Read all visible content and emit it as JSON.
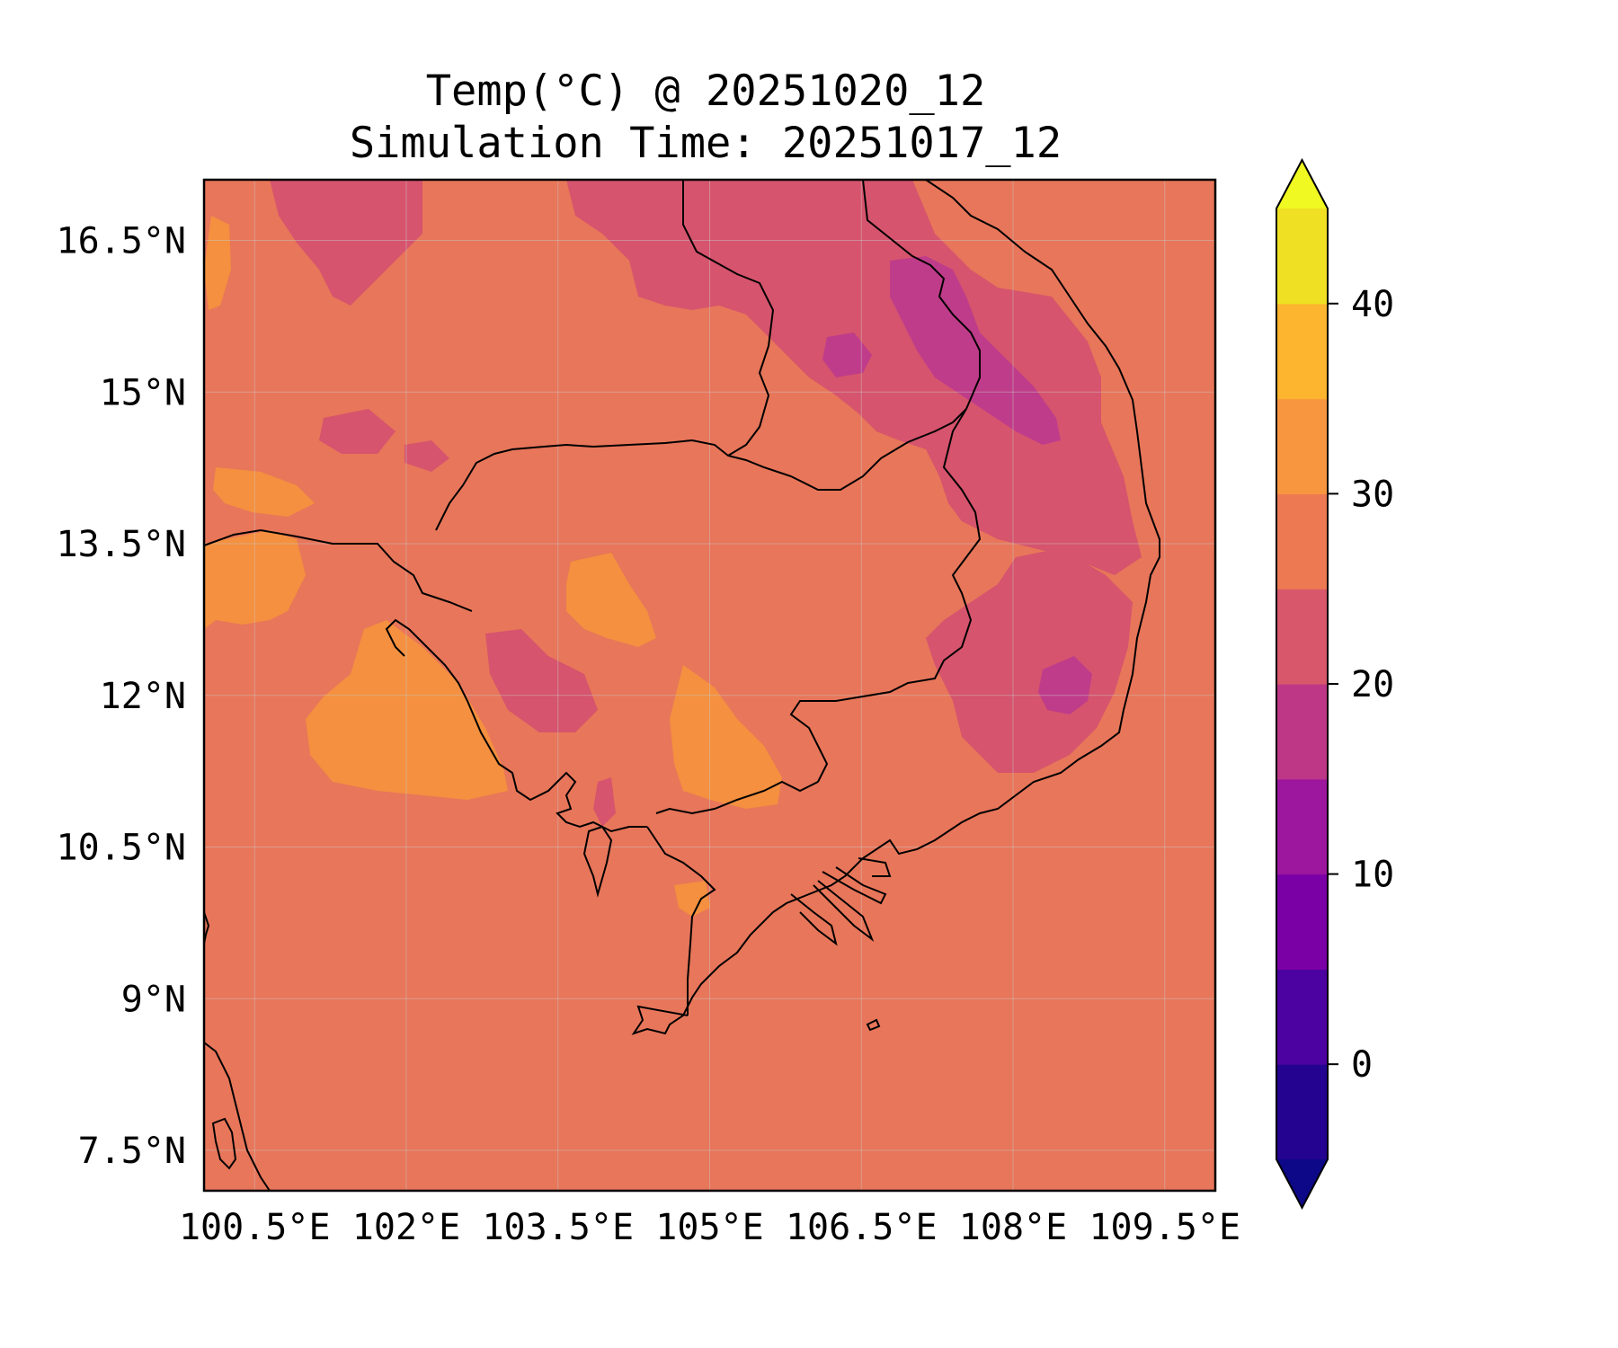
{
  "title": "Temp(°C) @ 20251020_12",
  "subtitle": "Simulation Time: 20251017_12",
  "colors": {
    "base_field": "#e8765a",
    "warm_field": "#f4903f",
    "cool_field": "#d6546d",
    "cold_field": "#bf3c8a",
    "coastline": "#000000",
    "gridline": "#c9c9c9"
  },
  "map": {
    "lon_range": [
      100.0,
      110.0
    ],
    "lat_range": [
      7.1,
      17.1
    ],
    "lon_ticks": [
      "100.5°E",
      "102°E",
      "103.5°E",
      "105°E",
      "106.5°E",
      "108°E",
      "109.5°E"
    ],
    "lon_tick_values": [
      100.5,
      102,
      103.5,
      105,
      106.5,
      108,
      109.5
    ],
    "lat_ticks": [
      "16.5°N",
      "15°N",
      "13.5°N",
      "12°N",
      "10.5°N",
      "9°N",
      "7.5°N"
    ],
    "lat_tick_values": [
      16.5,
      15,
      13.5,
      12,
      10.5,
      9,
      7.5
    ],
    "features": [
      "Cambodia",
      "Laos (south)",
      "Vietnam (south)",
      "Thailand (east)",
      "Gulf of Thailand",
      "Mekong Delta"
    ]
  },
  "colorbar": {
    "label_ticks": [
      "0",
      "10",
      "20",
      "30",
      "40"
    ],
    "label_values": [
      0,
      10,
      20,
      30,
      40
    ],
    "range": [
      -5,
      45
    ],
    "extend": "both",
    "bounds": [
      -5,
      0,
      5,
      10,
      15,
      20,
      25,
      30,
      35,
      40,
      45
    ],
    "band_colors": [
      "#23038f",
      "#4b02a1",
      "#7a00a6",
      "#9c179e",
      "#bd3786",
      "#d8576b",
      "#ed7953",
      "#f89640",
      "#fdb42f",
      "#f0e024"
    ],
    "under_color": "#0d0887",
    "over_color": "#f0f921"
  }
}
